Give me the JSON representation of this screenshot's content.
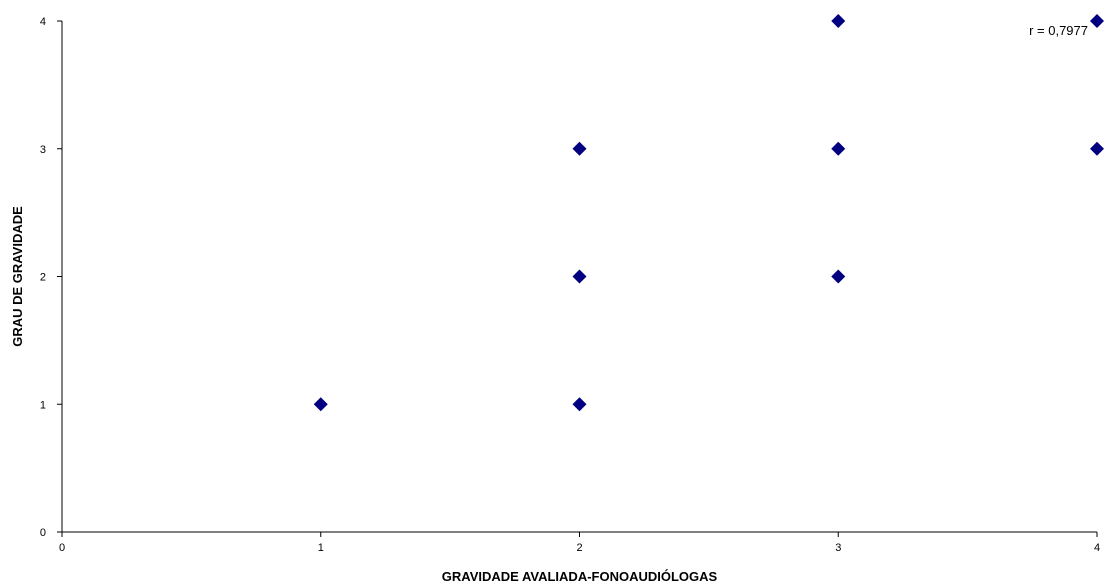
{
  "chart_data": {
    "type": "scatter",
    "title": "",
    "xlabel": "GRAVIDADE AVALIADA-FONOAUDIÓLOGAS",
    "ylabel": "GRAU DE GRAVIDADE",
    "xlim": [
      0,
      4
    ],
    "ylim": [
      0,
      4
    ],
    "x_ticks": [
      "0",
      "1",
      "2",
      "3",
      "4"
    ],
    "y_ticks": [
      "0",
      "1",
      "2",
      "3",
      "4"
    ],
    "grid": false,
    "legend": "none",
    "marker": "diamond",
    "marker_color": "#000080",
    "annotation": "r = 0,7977",
    "series": [
      {
        "points": [
          {
            "x": 1,
            "y": 1
          },
          {
            "x": 2,
            "y": 1
          },
          {
            "x": 2,
            "y": 2
          },
          {
            "x": 2,
            "y": 3
          },
          {
            "x": 3,
            "y": 2
          },
          {
            "x": 3,
            "y": 3
          },
          {
            "x": 3,
            "y": 4
          },
          {
            "x": 4,
            "y": 3
          },
          {
            "x": 4,
            "y": 4
          }
        ]
      }
    ]
  }
}
